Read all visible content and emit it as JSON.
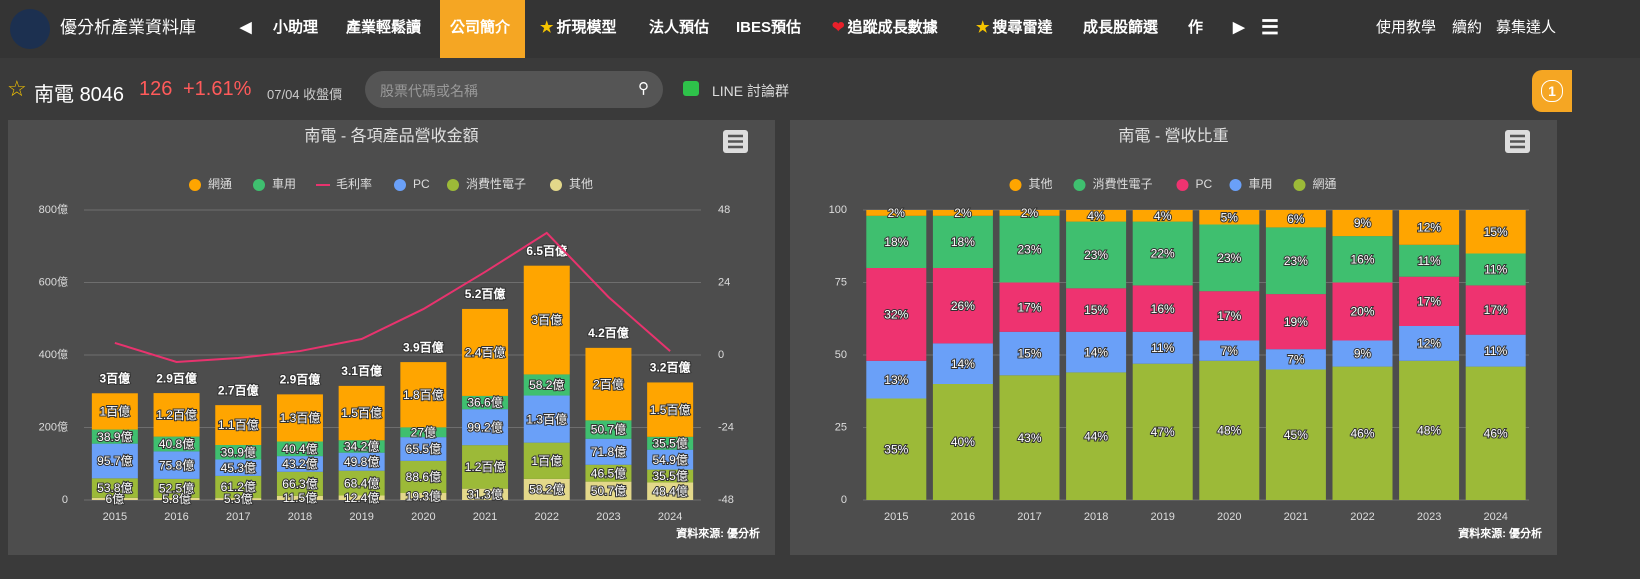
{
  "nav": {
    "brand": "優分析產業資料庫",
    "items": [
      "小助理",
      "產業輕鬆讀",
      "公司簡介",
      "折現模型",
      "法人預估",
      "IBES預估",
      "追蹤成長數據",
      "搜尋雷達",
      "成長股篩選",
      "作"
    ],
    "right": [
      "使用教學",
      "續約",
      "募集達人"
    ]
  },
  "stock": {
    "name": "南電",
    "code": "8046",
    "price": 126,
    "change": "+1.61%",
    "date": "07/04 收盤價",
    "search_placeholder": "股票代碼或名稱",
    "line_group": "LINE 討論群",
    "badge": "1"
  },
  "chart_data": [
    {
      "type": "bar",
      "stacked": true,
      "title": "南電 - 各項產品營收金額",
      "source": "資料來源: 優分析",
      "grid": true,
      "legend": "top",
      "categories": [
        "2015",
        "2016",
        "2017",
        "2018",
        "2019",
        "2020",
        "2021",
        "2022",
        "2023",
        "2024"
      ],
      "series": [
        {
          "name": "網通",
          "color": "#ffa500",
          "values": [
            100,
            120,
            110,
            130,
            150,
            180,
            240,
            300,
            200,
            150
          ],
          "value_labels": [
            "1百億",
            "1.2百億",
            "1.1百億",
            "1.3百億",
            "1.5百億",
            "1.8百億",
            "2.4百億",
            "3百億",
            "2百億",
            "1.5百億"
          ]
        },
        {
          "name": "車用",
          "color": "#3fbf6f",
          "values": [
            38.9,
            40.8,
            39.9,
            40.4,
            34.2,
            27,
            36.6,
            58.2,
            50.7,
            35.5
          ],
          "value_labels": [
            "38.9億",
            "40.8億",
            "39.9億",
            "40.4億",
            "34.2億",
            "27億",
            "36.6億",
            "58.2億",
            "50.7億",
            "35.5億"
          ]
        },
        {
          "name": "毛利率",
          "type": "line",
          "axis": "y2",
          "color": "#e8336e",
          "values": [
            4,
            -2.3,
            -1,
            1.3,
            5.3,
            15.2,
            27.5,
            40.4,
            19.2,
            1.3
          ]
        },
        {
          "name": "PC",
          "color": "#6aa0f8",
          "values": [
            95.7,
            75.8,
            45.3,
            43.2,
            49.8,
            65.5,
            99.2,
            130,
            71.8,
            54.9
          ],
          "value_labels": [
            "95.7億",
            "75.8億",
            "45.3億",
            "43.2億",
            "49.8億",
            "65.5億",
            "99.2億",
            "1.3百億",
            "71.8億",
            "54.9億"
          ]
        },
        {
          "name": "消費性電子",
          "color": "#9cba38",
          "values": [
            53.8,
            52.5,
            61.2,
            66.3,
            68.4,
            88.6,
            120,
            100,
            46.5,
            35.5
          ],
          "value_labels": [
            "53.8億",
            "52.5億",
            "61.2億",
            "66.3億",
            "68.4億",
            "88.6億",
            "1.2百億",
            "1百億",
            "46.5億",
            "35.5億"
          ]
        },
        {
          "name": "其他",
          "color": "#e3d88a",
          "values": [
            6,
            5.8,
            5.3,
            11.5,
            12.4,
            19.3,
            31.3,
            58.2,
            50.7,
            48.4
          ],
          "value_labels": [
            "6億",
            "5.8億",
            "5.3億",
            "11.5億",
            "12.4億",
            "19.3億",
            "31.3億",
            "58.2億",
            "50.7億",
            "48.4億"
          ]
        }
      ],
      "total_labels": [
        "3百億",
        "2.9百億",
        "2.7百億",
        "2.9百億",
        "3.1百億",
        "3.9百億",
        "5.2百億",
        "6.5百億",
        "4.2百億",
        "3.2百億"
      ],
      "ylim": [
        0,
        800
      ],
      "yticks": [
        0,
        {
          "value": 200,
          "label": "200億"
        },
        {
          "value": 400,
          "label": "400億"
        },
        {
          "value": 600,
          "label": "600億"
        },
        {
          "value": 800,
          "label": "800億"
        }
      ],
      "y2lim": [
        -48,
        48
      ],
      "y2ticks": [
        -48,
        -24,
        0,
        24,
        48
      ]
    },
    {
      "type": "bar",
      "stacked": true,
      "title": "南電 - 營收比重",
      "source": "資料來源: 優分析",
      "grid": true,
      "legend": "top",
      "categories": [
        "2015",
        "2016",
        "2017",
        "2018",
        "2019",
        "2020",
        "2021",
        "2022",
        "2023",
        "2024"
      ],
      "series": [
        {
          "name": "其他",
          "color": "#ffa500",
          "values": [
            2,
            2,
            2,
            4,
            4,
            5,
            6,
            9,
            12,
            15
          ],
          "value_labels": [
            "2%",
            "2%",
            "2%",
            "4%",
            "4%",
            "5%",
            "6%",
            "9%",
            "12%",
            "15%"
          ]
        },
        {
          "name": "消費性電子",
          "color": "#3fbf6f",
          "values": [
            18,
            18,
            23,
            23,
            22,
            23,
            23,
            16,
            11,
            11
          ],
          "value_labels": [
            "18%",
            "18%",
            "23%",
            "23%",
            "22%",
            "23%",
            "23%",
            "16%",
            "11%",
            "11%"
          ]
        },
        {
          "name": "PC",
          "color": "#ee3370",
          "values": [
            32,
            26,
            17,
            15,
            16,
            17,
            19,
            20,
            17,
            17
          ],
          "value_labels": [
            "32%",
            "26%",
            "17%",
            "15%",
            "16%",
            "17%",
            "19%",
            "20%",
            "17%",
            "17%"
          ]
        },
        {
          "name": "車用",
          "color": "#6aa0f8",
          "values": [
            13,
            14,
            15,
            14,
            11,
            7,
            7,
            9,
            12,
            11
          ],
          "value_labels": [
            "13%",
            "14%",
            "15%",
            "14%",
            "11%",
            "7%",
            "7%",
            "9%",
            "12%",
            "11%"
          ]
        },
        {
          "name": "網通",
          "color": "#9cba38",
          "values": [
            35,
            40,
            43,
            44,
            47,
            48,
            45,
            46,
            48,
            46
          ],
          "value_labels": [
            "35%",
            "40%",
            "43%",
            "44%",
            "47%",
            "48%",
            "45%",
            "46%",
            "48%",
            "46%"
          ]
        }
      ],
      "ylim": [
        0,
        100
      ],
      "yticks": [
        0,
        25,
        50,
        75,
        100
      ]
    }
  ]
}
